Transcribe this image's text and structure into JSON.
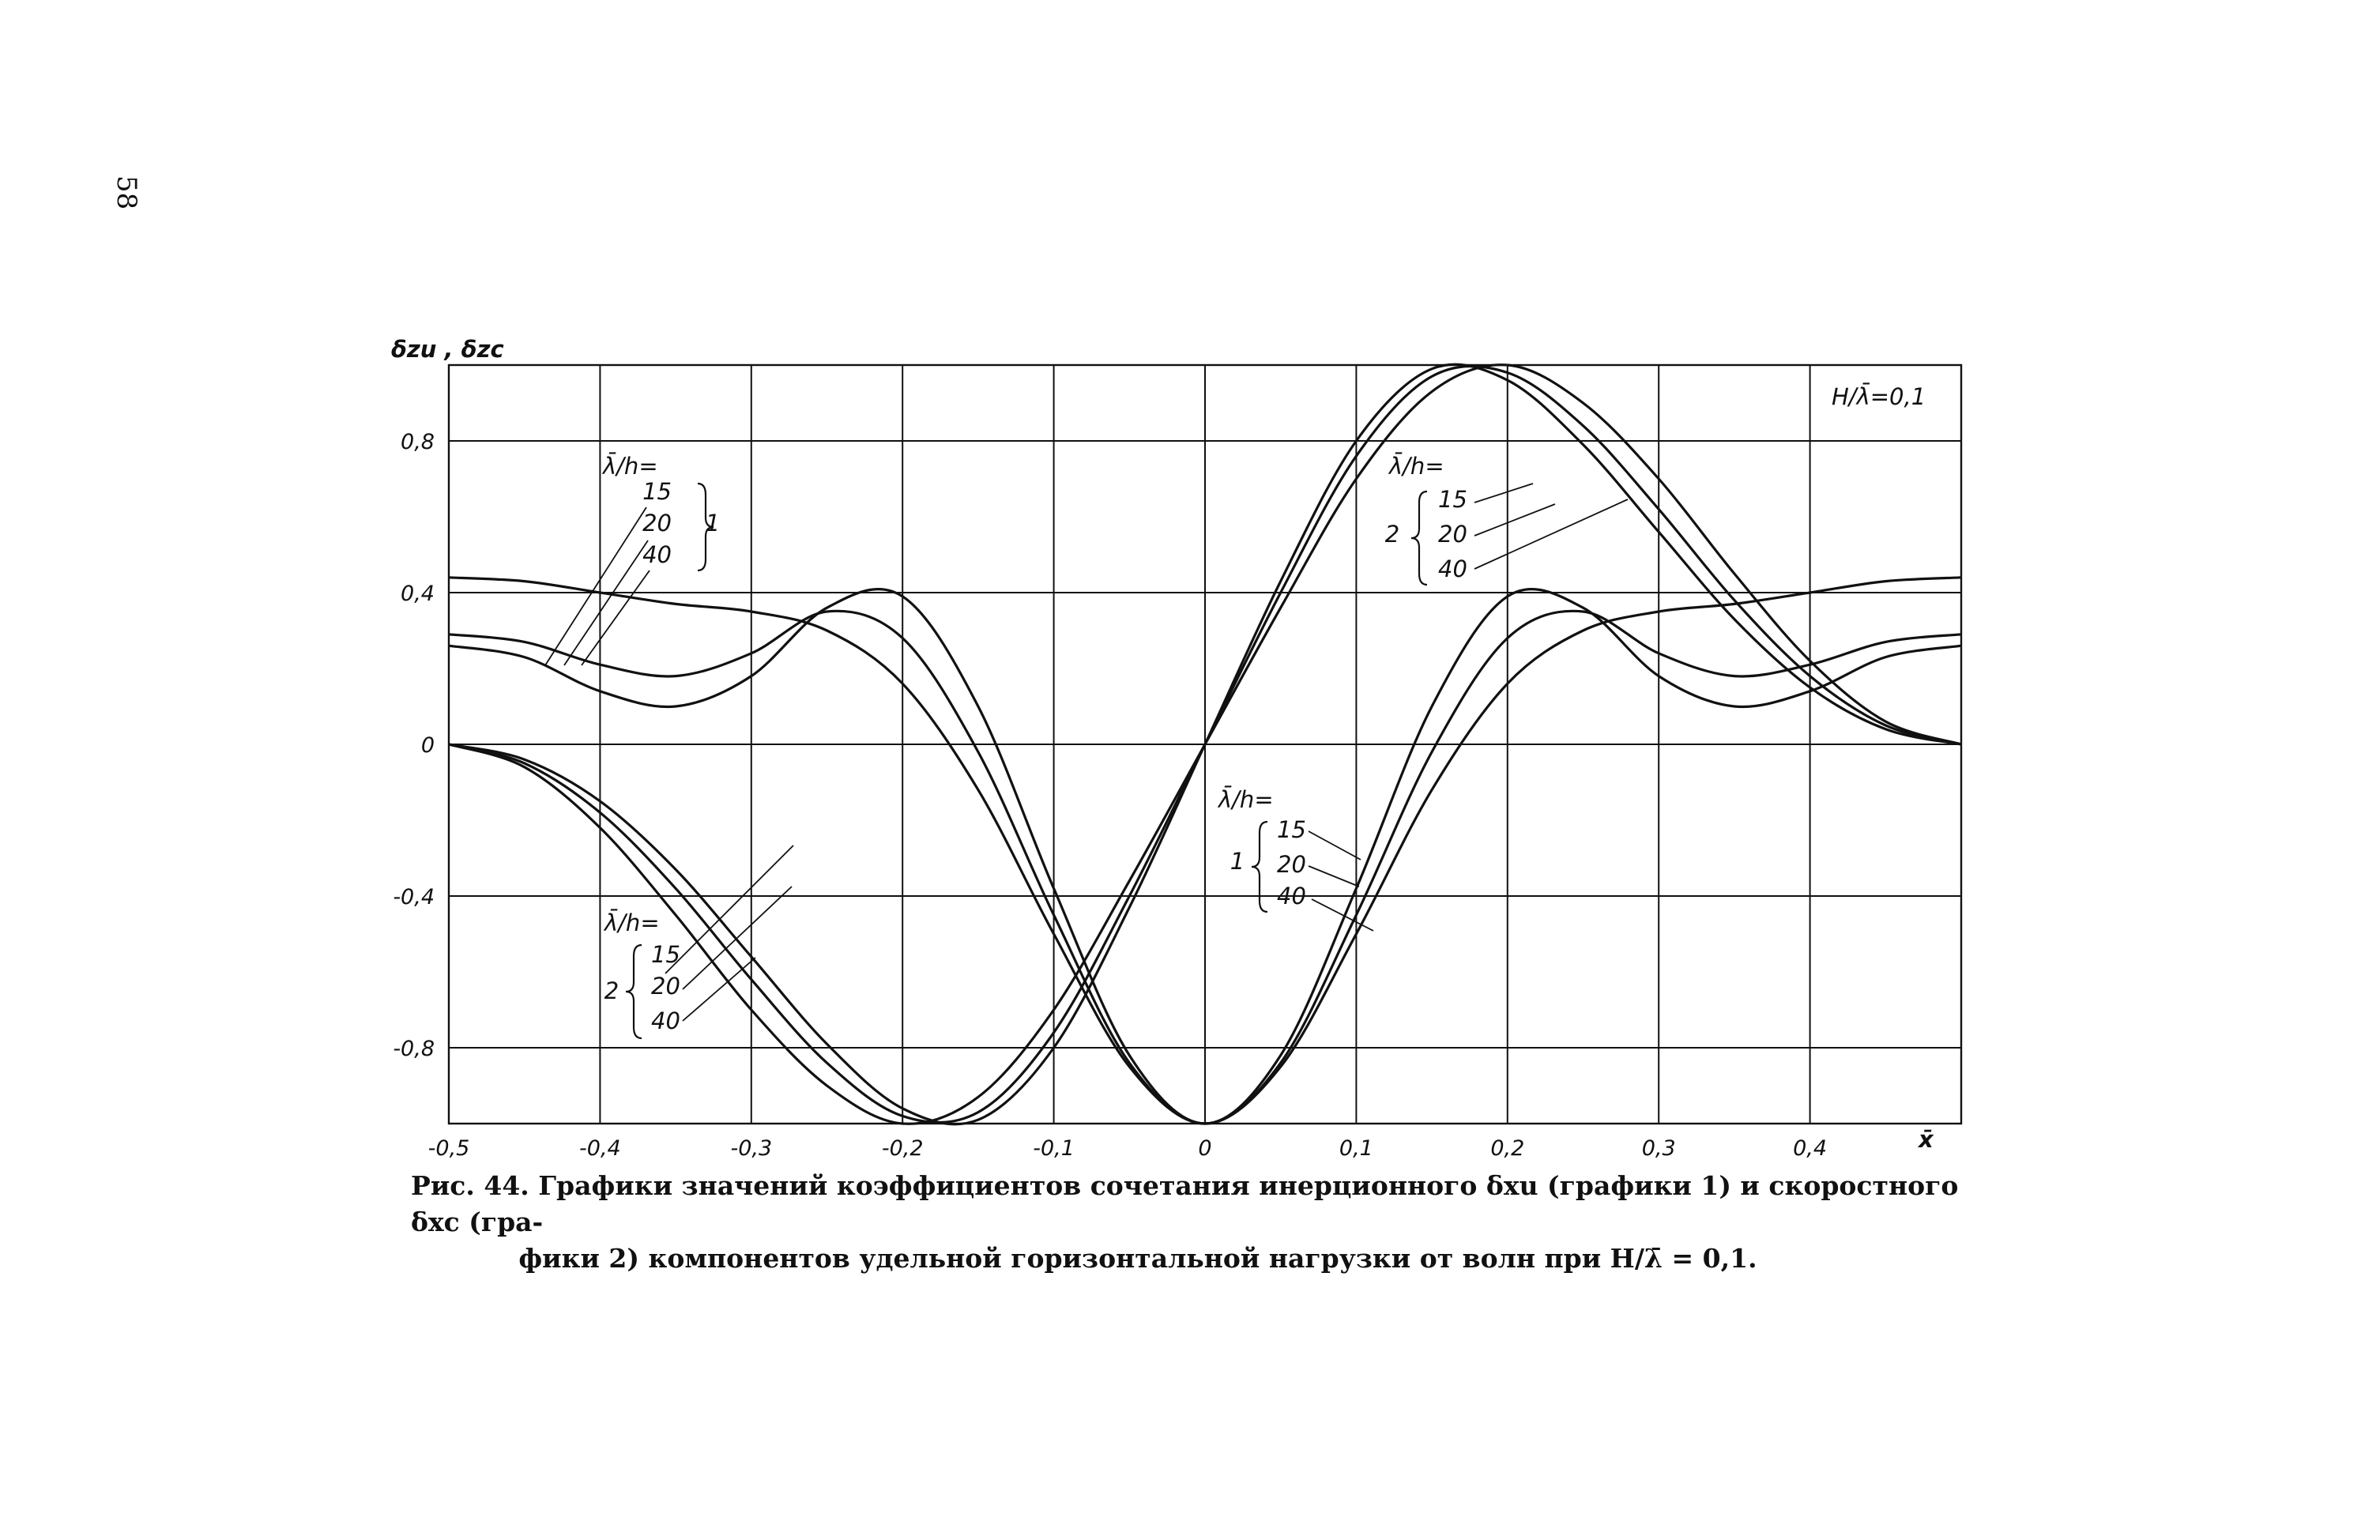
{
  "page": {
    "number": "58"
  },
  "chart_data": {
    "type": "line",
    "title": "",
    "xlabel": "x̄",
    "ylabel": "δzu , δzc",
    "xlim": [
      -0.5,
      0.5
    ],
    "ylim": [
      -1.0,
      1.0
    ],
    "grid": true,
    "x_ticks": [
      "-0,5",
      "-0,4",
      "-0,3",
      "-0,2",
      "-0,1",
      "0",
      "0,1",
      "0,2",
      "0,3",
      "0,4"
    ],
    "y_ticks": [
      "0,8",
      "0,4",
      "0",
      "-0,4",
      "-0,8"
    ],
    "parameter_note": "H/λ̄=0,1",
    "series": [
      {
        "group": "1",
        "ratio": "15",
        "x": [
          -0.5,
          -0.45,
          -0.4,
          -0.35,
          -0.3,
          -0.25,
          -0.2,
          -0.15,
          -0.1,
          -0.05,
          0,
          0.05,
          0.1,
          0.15,
          0.2,
          0.25,
          0.3,
          0.35,
          0.4,
          0.45,
          0.5
        ],
        "y": [
          0,
          -0.06,
          -0.22,
          -0.45,
          -0.7,
          -0.9,
          -1.0,
          -0.93,
          -0.7,
          -0.36,
          0,
          0.36,
          0.7,
          0.93,
          1.0,
          0.9,
          0.7,
          0.45,
          0.22,
          0.06,
          0
        ]
      },
      {
        "group": "1",
        "ratio": "20",
        "x": [
          -0.5,
          -0.45,
          -0.4,
          -0.35,
          -0.3,
          -0.25,
          -0.2,
          -0.15,
          -0.1,
          -0.05,
          0,
          0.05,
          0.1,
          0.15,
          0.2,
          0.25,
          0.3,
          0.35,
          0.4,
          0.45,
          0.5
        ],
        "y": [
          0,
          -0.05,
          -0.18,
          -0.38,
          -0.62,
          -0.84,
          -0.98,
          -0.97,
          -0.76,
          -0.4,
          0,
          0.4,
          0.76,
          0.97,
          0.98,
          0.84,
          0.62,
          0.38,
          0.18,
          0.05,
          0
        ]
      },
      {
        "group": "1",
        "ratio": "40",
        "x": [
          -0.5,
          -0.45,
          -0.4,
          -0.35,
          -0.3,
          -0.25,
          -0.2,
          -0.15,
          -0.1,
          -0.05,
          0,
          0.05,
          0.1,
          0.15,
          0.2,
          0.25,
          0.3,
          0.35,
          0.4,
          0.45,
          0.5
        ],
        "y": [
          0,
          -0.04,
          -0.15,
          -0.33,
          -0.56,
          -0.79,
          -0.96,
          -0.99,
          -0.8,
          -0.43,
          0,
          0.43,
          0.8,
          0.99,
          0.96,
          0.79,
          0.56,
          0.33,
          0.15,
          0.04,
          0
        ]
      },
      {
        "group": "2",
        "ratio": "15",
        "x": [
          -0.5,
          -0.45,
          -0.4,
          -0.35,
          -0.3,
          -0.25,
          -0.2,
          -0.15,
          -0.1,
          -0.05,
          0,
          0.05,
          0.1,
          0.15,
          0.2,
          0.25,
          0.3,
          0.35,
          0.4,
          0.45,
          0.5
        ],
        "y": [
          0.44,
          0.43,
          0.4,
          0.37,
          0.35,
          0.3,
          0.16,
          -0.12,
          -0.5,
          -0.85,
          -1.0,
          -0.85,
          -0.5,
          -0.12,
          0.16,
          0.3,
          0.35,
          0.37,
          0.4,
          0.43,
          0.44
        ]
      },
      {
        "group": "2",
        "ratio": "20",
        "x": [
          -0.5,
          -0.45,
          -0.4,
          -0.35,
          -0.3,
          -0.25,
          -0.2,
          -0.15,
          -0.1,
          -0.05,
          0,
          0.05,
          0.1,
          0.15,
          0.2,
          0.25,
          0.3,
          0.35,
          0.4,
          0.45,
          0.5
        ],
        "y": [
          0.29,
          0.27,
          0.21,
          0.18,
          0.24,
          0.35,
          0.28,
          -0.02,
          -0.45,
          -0.84,
          -1.0,
          -0.84,
          -0.45,
          -0.02,
          0.28,
          0.35,
          0.24,
          0.18,
          0.21,
          0.27,
          0.29
        ]
      },
      {
        "group": "2",
        "ratio": "40",
        "x": [
          -0.5,
          -0.45,
          -0.4,
          -0.35,
          -0.3,
          -0.25,
          -0.2,
          -0.15,
          -0.1,
          -0.05,
          0,
          0.05,
          0.1,
          0.15,
          0.2,
          0.25,
          0.3,
          0.35,
          0.4,
          0.45,
          0.5
        ],
        "y": [
          0.26,
          0.23,
          0.14,
          0.1,
          0.18,
          0.36,
          0.39,
          0.1,
          -0.38,
          -0.82,
          -1.0,
          -0.82,
          -0.38,
          0.1,
          0.39,
          0.36,
          0.18,
          0.1,
          0.14,
          0.23,
          0.26
        ]
      }
    ],
    "annotations": [
      {
        "id": "upper-left",
        "heading": "λ̄/h=",
        "values": [
          "15",
          "20",
          "40"
        ],
        "group": "1"
      },
      {
        "id": "upper-right",
        "heading": "λ̄/h=",
        "values": [
          "15",
          "20",
          "40"
        ],
        "group": "2"
      },
      {
        "id": "lower-mid",
        "heading": "λ̄/h=",
        "values": [
          "15",
          "20",
          "40"
        ],
        "group": "1"
      },
      {
        "id": "lower-left",
        "heading": "λ̄/h=",
        "values": [
          "15",
          "20",
          "40"
        ],
        "group": "2"
      }
    ]
  },
  "caption": {
    "line1": "Рис. 44. Графики значений коэффициентов сочетания инерционного δxu (графики 1) и скоростного δxc (гра-",
    "line2": "фики 2) компонентов удельной горизонтальной нагрузки от волн при H/λ̄ = 0,1."
  }
}
